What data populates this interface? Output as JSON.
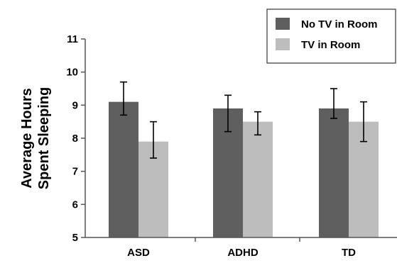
{
  "chart_data": {
    "type": "bar",
    "title": "",
    "xlabel": "",
    "ylabel_lines": [
      "Average Hours",
      "Spent Sleeping"
    ],
    "categories": [
      "ASD",
      "ADHD",
      "TD"
    ],
    "y_ticks": [
      "5",
      "6",
      "7",
      "8",
      "9",
      "10",
      "11"
    ],
    "ylim": [
      5,
      11
    ],
    "grid": false,
    "legend_position": "top-right",
    "series": [
      {
        "name": "No TV in Room",
        "color": "#5f5f5f",
        "values": [
          9.1,
          8.9,
          8.9
        ],
        "error_low": [
          8.7,
          8.2,
          8.6
        ],
        "error_high": [
          9.7,
          9.3,
          9.5
        ]
      },
      {
        "name": "TV in Room",
        "color": "#bdbdbd",
        "values": [
          7.9,
          8.5,
          8.5
        ],
        "error_low": [
          7.4,
          8.1,
          7.9
        ],
        "error_high": [
          8.5,
          8.8,
          9.1
        ]
      }
    ]
  }
}
